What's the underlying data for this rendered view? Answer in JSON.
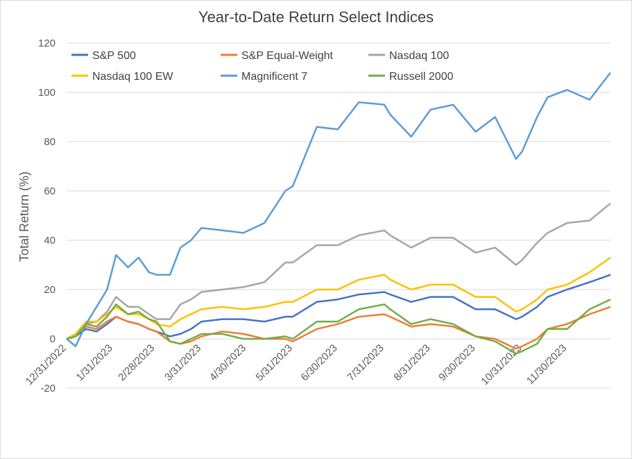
{
  "chart_data": {
    "type": "line",
    "title": "Year-to-Date Return Select Indices",
    "xlabel": "",
    "ylabel": "Total Return (%)",
    "ylim": [
      -20,
      120
    ],
    "yticks": [
      "-20",
      "0",
      "20",
      "40",
      "60",
      "80",
      "100",
      "120"
    ],
    "xlim": [
      "12/31/2022",
      "12/29/2023"
    ],
    "xticks": [
      "12/31/2022",
      "1/31/2023",
      "2/28/2023",
      "3/31/2023",
      "4/30/2023",
      "5/31/2023",
      "6/30/2023",
      "7/31/2023",
      "8/31/2023",
      "9/30/2023",
      "10/31/2023",
      "11/30/2023"
    ],
    "grid": "horizontal",
    "legend_position": "top",
    "series": [
      {
        "name": "S&P 500",
        "color": "#4472c4",
        "points": [
          [
            "12/31/2022",
            0
          ],
          [
            "1/6/2023",
            1
          ],
          [
            "1/13/2023",
            4
          ],
          [
            "1/20/2023",
            3
          ],
          [
            "1/27/2023",
            6
          ],
          [
            "2/2/2023",
            9
          ],
          [
            "2/10/2023",
            7
          ],
          [
            "2/17/2023",
            6
          ],
          [
            "2/24/2023",
            4
          ],
          [
            "3/1/2023",
            3
          ],
          [
            "3/10/2023",
            1
          ],
          [
            "3/17/2023",
            2
          ],
          [
            "3/24/2023",
            4
          ],
          [
            "3/31/2023",
            7
          ],
          [
            "4/14/2023",
            8
          ],
          [
            "4/28/2023",
            8
          ],
          [
            "5/12/2023",
            7
          ],
          [
            "5/26/2023",
            9
          ],
          [
            "5/31/2023",
            9
          ],
          [
            "6/16/2023",
            15
          ],
          [
            "6/30/2023",
            16
          ],
          [
            "7/14/2023",
            18
          ],
          [
            "7/31/2023",
            19
          ],
          [
            "8/4/2023",
            18
          ],
          [
            "8/18/2023",
            15
          ],
          [
            "8/31/2023",
            17
          ],
          [
            "9/15/2023",
            17
          ],
          [
            "9/30/2023",
            12
          ],
          [
            "10/13/2023",
            12
          ],
          [
            "10/27/2023",
            8
          ],
          [
            "10/31/2023",
            9
          ],
          [
            "11/10/2023",
            13
          ],
          [
            "11/17/2023",
            17
          ],
          [
            "11/30/2023",
            20
          ],
          [
            "12/15/2023",
            23
          ],
          [
            "12/29/2023",
            26
          ]
        ]
      },
      {
        "name": "S&P Equal-Weight",
        "color": "#ed7d31",
        "points": [
          [
            "12/31/2022",
            0
          ],
          [
            "1/6/2023",
            2
          ],
          [
            "1/13/2023",
            5
          ],
          [
            "1/20/2023",
            4
          ],
          [
            "1/27/2023",
            7
          ],
          [
            "2/2/2023",
            9
          ],
          [
            "2/10/2023",
            7
          ],
          [
            "2/17/2023",
            6
          ],
          [
            "2/24/2023",
            4
          ],
          [
            "3/1/2023",
            3
          ],
          [
            "3/10/2023",
            -1
          ],
          [
            "3/17/2023",
            -2
          ],
          [
            "3/24/2023",
            -1
          ],
          [
            "3/31/2023",
            1
          ],
          [
            "4/14/2023",
            3
          ],
          [
            "4/28/2023",
            2
          ],
          [
            "5/12/2023",
            0
          ],
          [
            "5/26/2023",
            0
          ],
          [
            "5/31/2023",
            -1
          ],
          [
            "6/16/2023",
            4
          ],
          [
            "6/30/2023",
            6
          ],
          [
            "7/14/2023",
            9
          ],
          [
            "7/31/2023",
            10
          ],
          [
            "8/4/2023",
            9
          ],
          [
            "8/18/2023",
            5
          ],
          [
            "8/31/2023",
            6
          ],
          [
            "9/15/2023",
            5
          ],
          [
            "9/30/2023",
            1
          ],
          [
            "10/13/2023",
            0
          ],
          [
            "10/27/2023",
            -4
          ],
          [
            "10/31/2023",
            -3
          ],
          [
            "11/10/2023",
            0
          ],
          [
            "11/17/2023",
            4
          ],
          [
            "11/30/2023",
            6
          ],
          [
            "12/15/2023",
            10
          ],
          [
            "12/29/2023",
            13
          ]
        ]
      },
      {
        "name": "Nasdaq 100",
        "color": "#a5a5a5",
        "points": [
          [
            "12/31/2022",
            0
          ],
          [
            "1/6/2023",
            1
          ],
          [
            "1/13/2023",
            6
          ],
          [
            "1/20/2023",
            7
          ],
          [
            "1/27/2023",
            11
          ],
          [
            "2/2/2023",
            17
          ],
          [
            "2/10/2023",
            13
          ],
          [
            "2/17/2023",
            13
          ],
          [
            "2/24/2023",
            10
          ],
          [
            "3/1/2023",
            8
          ],
          [
            "3/10/2023",
            8
          ],
          [
            "3/17/2023",
            14
          ],
          [
            "3/24/2023",
            16
          ],
          [
            "3/31/2023",
            19
          ],
          [
            "4/14/2023",
            20
          ],
          [
            "4/28/2023",
            21
          ],
          [
            "5/12/2023",
            23
          ],
          [
            "5/26/2023",
            31
          ],
          [
            "5/31/2023",
            31
          ],
          [
            "6/16/2023",
            38
          ],
          [
            "6/30/2023",
            38
          ],
          [
            "7/14/2023",
            42
          ],
          [
            "7/31/2023",
            44
          ],
          [
            "8/4/2023",
            42
          ],
          [
            "8/18/2023",
            37
          ],
          [
            "8/31/2023",
            41
          ],
          [
            "9/15/2023",
            41
          ],
          [
            "9/30/2023",
            35
          ],
          [
            "10/13/2023",
            37
          ],
          [
            "10/27/2023",
            30
          ],
          [
            "10/31/2023",
            32
          ],
          [
            "11/10/2023",
            39
          ],
          [
            "11/17/2023",
            43
          ],
          [
            "11/30/2023",
            47
          ],
          [
            "12/15/2023",
            48
          ],
          [
            "12/29/2023",
            55
          ]
        ]
      },
      {
        "name": "Nasdaq 100 EW",
        "color": "#ffc000",
        "points": [
          [
            "12/31/2022",
            0
          ],
          [
            "1/6/2023",
            2
          ],
          [
            "1/13/2023",
            7
          ],
          [
            "1/20/2023",
            7
          ],
          [
            "1/27/2023",
            10
          ],
          [
            "2/2/2023",
            13
          ],
          [
            "2/10/2023",
            10
          ],
          [
            "2/17/2023",
            10
          ],
          [
            "2/24/2023",
            8
          ],
          [
            "3/1/2023",
            6
          ],
          [
            "3/10/2023",
            5
          ],
          [
            "3/17/2023",
            8
          ],
          [
            "3/24/2023",
            10
          ],
          [
            "3/31/2023",
            12
          ],
          [
            "4/14/2023",
            13
          ],
          [
            "4/28/2023",
            12
          ],
          [
            "5/12/2023",
            13
          ],
          [
            "5/26/2023",
            15
          ],
          [
            "5/31/2023",
            15
          ],
          [
            "6/16/2023",
            20
          ],
          [
            "6/30/2023",
            20
          ],
          [
            "7/14/2023",
            24
          ],
          [
            "7/31/2023",
            26
          ],
          [
            "8/4/2023",
            24
          ],
          [
            "8/18/2023",
            20
          ],
          [
            "8/31/2023",
            22
          ],
          [
            "9/15/2023",
            22
          ],
          [
            "9/30/2023",
            17
          ],
          [
            "10/13/2023",
            17
          ],
          [
            "10/27/2023",
            11
          ],
          [
            "10/31/2023",
            12
          ],
          [
            "11/10/2023",
            16
          ],
          [
            "11/17/2023",
            20
          ],
          [
            "11/30/2023",
            22
          ],
          [
            "12/15/2023",
            27
          ],
          [
            "12/29/2023",
            33
          ]
        ]
      },
      {
        "name": "Magnificent 7",
        "color": "#5b9bd5",
        "points": [
          [
            "12/31/2022",
            0
          ],
          [
            "1/6/2023",
            -3
          ],
          [
            "1/13/2023",
            6
          ],
          [
            "1/20/2023",
            13
          ],
          [
            "1/27/2023",
            20
          ],
          [
            "2/2/2023",
            34
          ],
          [
            "2/10/2023",
            29
          ],
          [
            "2/17/2023",
            33
          ],
          [
            "2/24/2023",
            27
          ],
          [
            "3/1/2023",
            26
          ],
          [
            "3/10/2023",
            26
          ],
          [
            "3/17/2023",
            37
          ],
          [
            "3/24/2023",
            40
          ],
          [
            "3/31/2023",
            45
          ],
          [
            "4/14/2023",
            44
          ],
          [
            "4/28/2023",
            43
          ],
          [
            "5/12/2023",
            47
          ],
          [
            "5/26/2023",
            60
          ],
          [
            "5/31/2023",
            62
          ],
          [
            "6/16/2023",
            86
          ],
          [
            "6/30/2023",
            85
          ],
          [
            "7/14/2023",
            96
          ],
          [
            "7/31/2023",
            95
          ],
          [
            "8/4/2023",
            91
          ],
          [
            "8/18/2023",
            82
          ],
          [
            "8/31/2023",
            93
          ],
          [
            "9/15/2023",
            95
          ],
          [
            "9/30/2023",
            84
          ],
          [
            "10/13/2023",
            90
          ],
          [
            "10/27/2023",
            73
          ],
          [
            "10/31/2023",
            76
          ],
          [
            "11/10/2023",
            90
          ],
          [
            "11/17/2023",
            98
          ],
          [
            "11/30/2023",
            101
          ],
          [
            "12/15/2023",
            97
          ],
          [
            "12/29/2023",
            108
          ]
        ]
      },
      {
        "name": "Russell 2000",
        "color": "#70ad47",
        "points": [
          [
            "12/31/2022",
            0
          ],
          [
            "1/6/2023",
            1
          ],
          [
            "1/13/2023",
            6
          ],
          [
            "1/20/2023",
            5
          ],
          [
            "1/27/2023",
            9
          ],
          [
            "2/2/2023",
            14
          ],
          [
            "2/10/2023",
            10
          ],
          [
            "2/17/2023",
            11
          ],
          [
            "2/24/2023",
            8
          ],
          [
            "3/1/2023",
            7
          ],
          [
            "3/10/2023",
            -1
          ],
          [
            "3/17/2023",
            -2
          ],
          [
            "3/24/2023",
            0
          ],
          [
            "3/31/2023",
            2
          ],
          [
            "4/14/2023",
            2
          ],
          [
            "4/28/2023",
            0
          ],
          [
            "5/12/2023",
            0
          ],
          [
            "5/26/2023",
            1
          ],
          [
            "5/31/2023",
            0
          ],
          [
            "6/16/2023",
            7
          ],
          [
            "6/30/2023",
            7
          ],
          [
            "7/14/2023",
            12
          ],
          [
            "7/31/2023",
            14
          ],
          [
            "8/4/2023",
            12
          ],
          [
            "8/18/2023",
            6
          ],
          [
            "8/31/2023",
            8
          ],
          [
            "9/15/2023",
            6
          ],
          [
            "9/30/2023",
            1
          ],
          [
            "10/13/2023",
            -1
          ],
          [
            "10/27/2023",
            -6
          ],
          [
            "10/31/2023",
            -5
          ],
          [
            "11/10/2023",
            -2
          ],
          [
            "11/17/2023",
            4
          ],
          [
            "11/30/2023",
            4
          ],
          [
            "12/15/2023",
            12
          ],
          [
            "12/29/2023",
            16
          ]
        ]
      }
    ]
  }
}
